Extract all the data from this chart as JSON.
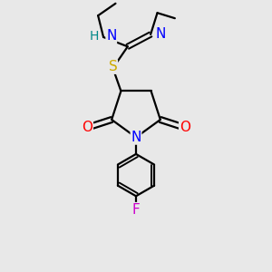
{
  "bg_color": "#e8e8e8",
  "atom_colors": {
    "C": "#000000",
    "N": "#0000ff",
    "O": "#ff0000",
    "S": "#ccaa00",
    "F": "#cc00cc",
    "H": "#008888"
  },
  "line_color": "#000000",
  "line_width": 1.6,
  "font_size": 10,
  "figsize": [
    3.0,
    3.0
  ],
  "dpi": 100
}
